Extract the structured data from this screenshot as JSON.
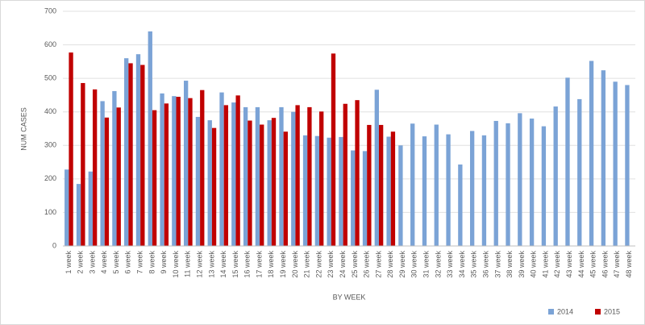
{
  "chart_data": {
    "type": "bar",
    "xlabel": "BY WEEK",
    "ylabel": "NUM CASES",
    "categories": [
      "1 week",
      "2 week",
      "3 week",
      "4 week",
      "5 week",
      "6 week",
      "7 week",
      "8 week",
      "9 week",
      "10 week",
      "11 week",
      "12 week",
      "13 week",
      "14 week",
      "15 week",
      "16 week",
      "17 week",
      "18 week",
      "19 week",
      "20 week",
      "21 week",
      "22 week",
      "23 week",
      "24 week",
      "25 week",
      "26 week",
      "27 week",
      "28 week",
      "29 week",
      "30 week",
      "31 week",
      "32 week",
      "33 week",
      "34 week",
      "35 week",
      "36 week",
      "37 week",
      "38 week",
      "39 week",
      "40 week",
      "41 week",
      "42 week",
      "43 week",
      "44 week",
      "45 week",
      "46 week",
      "47 week",
      "48 week"
    ],
    "series": [
      {
        "name": "2014",
        "color": "#7ba3d6",
        "values": [
          228,
          185,
          222,
          432,
          462,
          560,
          572,
          640,
          455,
          447,
          493,
          385,
          375,
          458,
          428,
          414,
          414,
          375,
          414,
          400,
          330,
          328,
          323,
          325,
          285,
          283,
          466,
          326,
          300,
          365,
          327,
          362,
          333,
          243,
          343,
          330,
          373,
          366,
          396,
          380,
          357,
          416,
          502,
          438,
          552,
          524,
          490,
          480
        ]
      },
      {
        "name": "2015",
        "color": "#c00000",
        "values": [
          577,
          486,
          467,
          383,
          413,
          545,
          540,
          405,
          425,
          445,
          441,
          465,
          352,
          420,
          449,
          374,
          362,
          382,
          341,
          420,
          414,
          401,
          574,
          424,
          435,
          361,
          361,
          341,
          null,
          null,
          null,
          null,
          null,
          null,
          null,
          null,
          null,
          null,
          null,
          null,
          null,
          null,
          null,
          null,
          null,
          null,
          null,
          null
        ]
      }
    ],
    "ylim": [
      0,
      700
    ],
    "yticks": [
      0,
      100,
      200,
      300,
      400,
      500,
      600,
      700
    ],
    "grid": true,
    "legend": "bottom-right"
  }
}
